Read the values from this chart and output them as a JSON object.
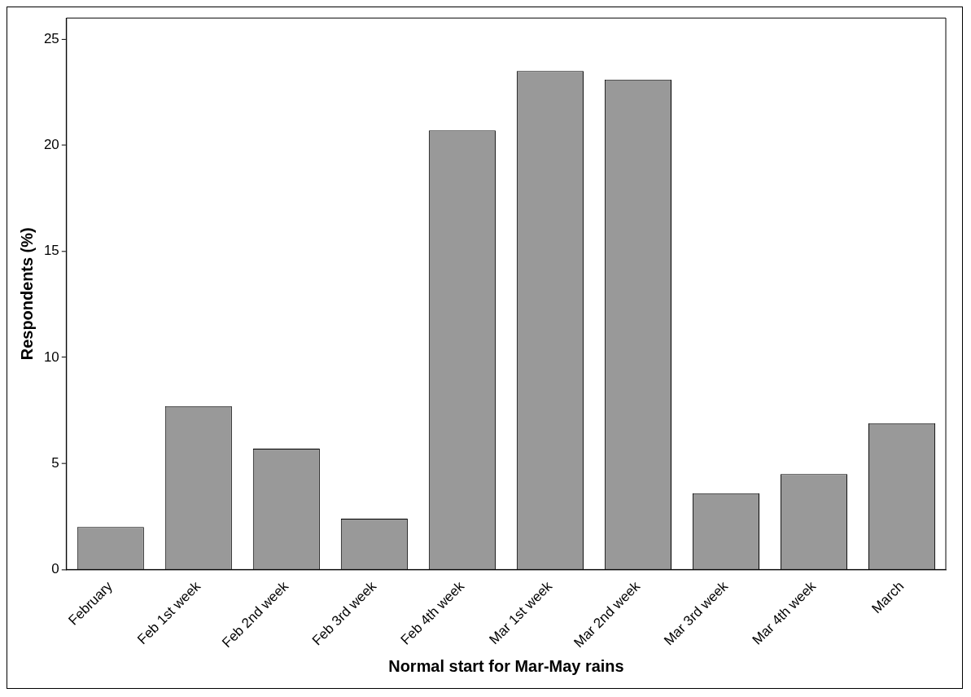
{
  "chart_data": {
    "type": "bar",
    "xlabel": "Normal start for Mar-May rains",
    "ylabel": "Respondents (%)",
    "categories": [
      "February",
      "Feb 1st week",
      "Feb 2nd week",
      "Feb 3rd week",
      "Feb 4th week",
      "Mar 1st week",
      "Mar 2nd week",
      "Mar 3rd week",
      "Mar 4th week",
      "March"
    ],
    "values": [
      2.0,
      7.7,
      5.7,
      2.4,
      20.7,
      23.5,
      23.1,
      3.6,
      4.5,
      6.9
    ],
    "color": "#999999",
    "ylim": [
      0,
      26
    ],
    "yticks": [
      0,
      5,
      10,
      15,
      20,
      25
    ],
    "grid": false,
    "legend": false
  }
}
